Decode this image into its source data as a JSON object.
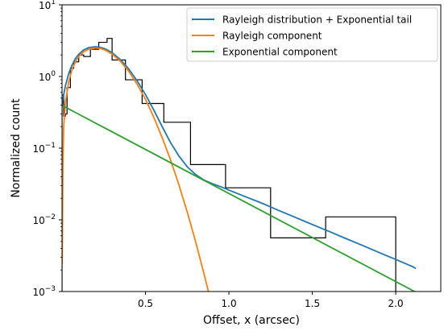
{
  "chart_data": {
    "type": "line",
    "xlabel": "Offset, x (arcsec)",
    "ylabel": "Normalized count",
    "xlim": [
      0.0,
      2.27
    ],
    "ylim": [
      0.001,
      10
    ],
    "yscale": "log",
    "x_ticks": [
      {
        "value": 0.5,
        "label": "0.5"
      },
      {
        "value": 1.0,
        "label": "1.0"
      },
      {
        "value": 1.5,
        "label": "1.5"
      },
      {
        "value": 2.0,
        "label": "2.0"
      }
    ],
    "y_ticks": [
      {
        "value": 10,
        "base": "10",
        "exp": "1"
      },
      {
        "value": 1,
        "base": "10",
        "exp": "0"
      },
      {
        "value": 0.1,
        "base": "10",
        "exp": "−1"
      },
      {
        "value": 0.01,
        "base": "10",
        "exp": "−2"
      },
      {
        "value": 0.001,
        "base": "10",
        "exp": "−3"
      }
    ],
    "legend_position": "top-right",
    "histogram": {
      "color": "#000000",
      "edges": [
        0.0,
        0.01,
        0.02,
        0.03,
        0.05,
        0.07,
        0.1,
        0.13,
        0.17,
        0.22,
        0.27,
        0.3,
        0.38,
        0.48,
        0.61,
        0.77,
        0.98,
        1.25,
        1.58,
        2.0
      ],
      "values": [
        0.55,
        0.28,
        0.3,
        0.7,
        1.3,
        1.6,
        2.0,
        1.9,
        2.4,
        3.0,
        3.4,
        1.7,
        0.9,
        0.42,
        0.23,
        0.059,
        0.028,
        0.0056,
        0.011
      ]
    },
    "series": [
      {
        "name": "Rayleigh distribution + Exponential tail",
        "color": "#1f77b4",
        "x": [
          0.0,
          0.005,
          0.01,
          0.02,
          0.04,
          0.06,
          0.08,
          0.1,
          0.13,
          0.16,
          0.2,
          0.23,
          0.26,
          0.3,
          0.35,
          0.4,
          0.45,
          0.5,
          0.55,
          0.6,
          0.65,
          0.7,
          0.75,
          0.8,
          0.85,
          0.9,
          0.95,
          1.0,
          1.1,
          1.2,
          1.3,
          1.4,
          1.5,
          1.6,
          1.7,
          1.8,
          1.9,
          2.0,
          2.1,
          2.12
        ],
        "y": [
          0.39,
          0.47,
          0.56,
          0.74,
          1.1,
          1.45,
          1.77,
          2.04,
          2.35,
          2.53,
          2.6,
          2.55,
          2.42,
          2.15,
          1.72,
          1.27,
          0.87,
          0.56,
          0.34,
          0.2,
          0.12,
          0.078,
          0.055,
          0.043,
          0.036,
          0.032,
          0.029,
          0.026,
          0.021,
          0.017,
          0.0135,
          0.0108,
          0.0086,
          0.0069,
          0.0055,
          0.0044,
          0.0035,
          0.0028,
          0.00223,
          0.0021
        ]
      },
      {
        "name": "Rayleigh component",
        "color": "#ff7f0e",
        "x": [
          0.001,
          0.005,
          0.01,
          0.02,
          0.04,
          0.06,
          0.08,
          0.1,
          0.13,
          0.16,
          0.2,
          0.23,
          0.26,
          0.3,
          0.35,
          0.4,
          0.45,
          0.5,
          0.55,
          0.6,
          0.65,
          0.7,
          0.75,
          0.8,
          0.85,
          0.9,
          0.94
        ],
        "y": [
          0.0024,
          0.06,
          0.2,
          0.43,
          0.85,
          1.25,
          1.6,
          1.9,
          2.22,
          2.4,
          2.5,
          2.46,
          2.33,
          2.05,
          1.63,
          1.18,
          0.78,
          0.48,
          0.27,
          0.14,
          0.069,
          0.031,
          0.0129,
          0.005,
          0.0018,
          0.00061,
          0.001
        ]
      },
      {
        "name": "Exponential component",
        "color": "#2ca02c",
        "x": [
          0.0,
          2.12
        ],
        "y": [
          0.395,
          0.00098
        ]
      }
    ]
  }
}
